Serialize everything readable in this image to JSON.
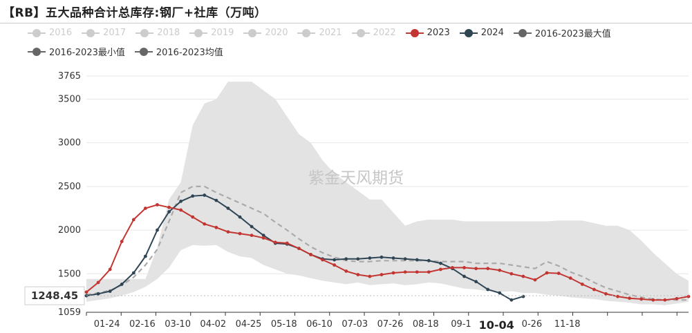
{
  "title": "【RB】五大品种合计总库存:钢厂+社库（万吨）",
  "legend": {
    "rows": [
      [
        {
          "label": "2016",
          "color": "#cccccc",
          "active": false
        },
        {
          "label": "2017",
          "color": "#cccccc",
          "active": false
        },
        {
          "label": "2018",
          "color": "#cccccc",
          "active": false
        },
        {
          "label": "2019",
          "color": "#cccccc",
          "active": false
        },
        {
          "label": "2020",
          "color": "#cccccc",
          "active": false
        },
        {
          "label": "2021",
          "color": "#cccccc",
          "active": false
        },
        {
          "label": "2022",
          "color": "#cccccc",
          "active": false
        },
        {
          "label": "2023",
          "color": "#c23531",
          "active": true
        },
        {
          "label": "2024",
          "color": "#2f4554",
          "active": true
        },
        {
          "label": "2016-2023最大值",
          "color": "#666666",
          "active": true
        }
      ],
      [
        {
          "label": "2016-2023最小值",
          "color": "#666666",
          "active": true
        },
        {
          "label": "2016-2023均值",
          "color": "#666666",
          "active": true
        }
      ]
    ]
  },
  "watermark": "紫金天风期货",
  "axis_pointer": {
    "label": "1248.45",
    "value": 1248.45,
    "x_index": 0
  },
  "chart_data": {
    "type": "line",
    "title": "【RB】五大品种合计总库存:钢厂+社库（万吨）",
    "unit": "万吨",
    "ylim": [
      1059,
      3765
    ],
    "y_ticks": [
      1059,
      1500,
      2000,
      2500,
      3000,
      3500,
      3765
    ],
    "x_tick_labels": [
      "01-24",
      "02-16",
      "03-10",
      "04-02",
      "04-25",
      "05-18",
      "06-10",
      "07-03",
      "07-26",
      "08-18",
      "09-1",
      "10-04",
      "0-26",
      "11-18"
    ],
    "x_tick_index": [
      3,
      6,
      9,
      12,
      15,
      18,
      21,
      24,
      27,
      30,
      33,
      36,
      39,
      42
    ],
    "highlight_tick": "10-04",
    "n_weeks": 52,
    "range_max": [
      1440,
      1440,
      1440,
      1440,
      1440,
      1440,
      1800,
      2350,
      2550,
      3200,
      3450,
      3500,
      3700,
      3700,
      3700,
      3600,
      3500,
      3300,
      3100,
      3000,
      2800,
      2650,
      2550,
      2450,
      2350,
      2350,
      2200,
      2050,
      2100,
      2120,
      2120,
      2120,
      2100,
      2100,
      2100,
      2100,
      2100,
      2100,
      2100,
      2100,
      2110,
      2110,
      2110,
      2080,
      2050,
      2050,
      2000,
      1880,
      1740,
      1620,
      1500,
      1420
    ],
    "range_min": [
      1180,
      1200,
      1220,
      1250,
      1290,
      1350,
      1440,
      1570,
      1770,
      1830,
      1820,
      1830,
      1750,
      1700,
      1680,
      1600,
      1550,
      1500,
      1480,
      1450,
      1420,
      1400,
      1380,
      1400,
      1370,
      1380,
      1390,
      1370,
      1380,
      1400,
      1390,
      1360,
      1330,
      1320,
      1300,
      1290,
      1300,
      1280,
      1280,
      1260,
      1250,
      1230,
      1220,
      1210,
      1190,
      1180,
      1170,
      1150,
      1150,
      1140,
      1160,
      1180
    ],
    "series": [
      {
        "name": "2023",
        "color": "#c23531",
        "style": "solid",
        "marker": "circle",
        "values": [
          1290,
          1400,
          1550,
          1870,
          2120,
          2250,
          2290,
          2260,
          2230,
          2150,
          2070,
          2030,
          1980,
          1960,
          1940,
          1910,
          1860,
          1850,
          1790,
          1720,
          1660,
          1600,
          1530,
          1490,
          1470,
          1490,
          1510,
          1520,
          1520,
          1520,
          1550,
          1570,
          1570,
          1560,
          1560,
          1540,
          1500,
          1470,
          1430,
          1510,
          1505,
          1450,
          1380,
          1320,
          1270,
          1240,
          1220,
          1210,
          1200,
          1200,
          1215,
          1240
        ]
      },
      {
        "name": "2024",
        "color": "#2f4554",
        "style": "solid",
        "marker": "circle",
        "values": [
          1248.45,
          1270,
          1300,
          1380,
          1510,
          1700,
          2000,
          2210,
          2330,
          2390,
          2400,
          2340,
          2250,
          2150,
          2040,
          1940,
          1850,
          1840,
          1790,
          1720,
          1670,
          1660,
          1670,
          1670,
          1680,
          1690,
          1680,
          1670,
          1660,
          1650,
          1620,
          1560,
          1470,
          1410,
          1320,
          1280,
          1200,
          1240
        ]
      },
      {
        "name": "2016-2023均值",
        "color": "#aaaaaa",
        "style": "dashed",
        "marker": "none",
        "values": [
          1260,
          1280,
          1310,
          1370,
          1460,
          1600,
          1780,
          2100,
          2430,
          2500,
          2500,
          2430,
          2370,
          2310,
          2250,
          2190,
          2090,
          2000,
          1900,
          1810,
          1740,
          1690,
          1650,
          1640,
          1640,
          1650,
          1650,
          1650,
          1650,
          1650,
          1640,
          1640,
          1640,
          1620,
          1620,
          1620,
          1600,
          1580,
          1560,
          1640,
          1590,
          1520,
          1470,
          1400,
          1340,
          1300,
          1260,
          1230,
          1210,
          1200,
          1200,
          1200
        ]
      }
    ]
  }
}
